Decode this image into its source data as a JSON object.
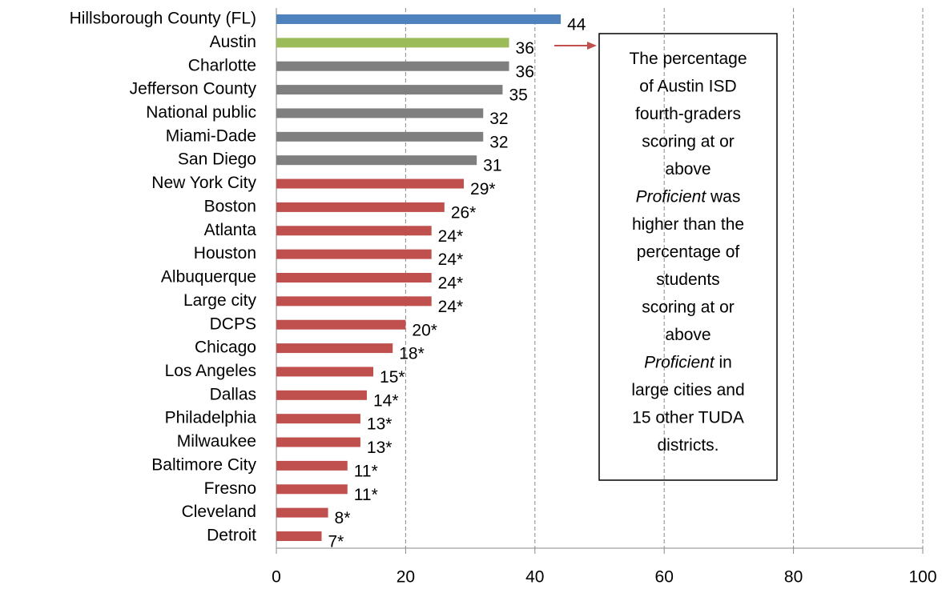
{
  "chart_data": {
    "type": "bar",
    "orientation": "horizontal",
    "categories": [
      "Hillsborough County (FL)",
      "Austin",
      "Charlotte",
      "Jefferson County",
      "National public",
      "Miami-Dade",
      "San Diego",
      "New York City",
      "Boston",
      "Atlanta",
      "Houston",
      "Albuquerque",
      "Large city",
      "DCPS",
      "Chicago",
      "Los Angeles",
      "Dallas",
      "Philadelphia",
      "Milwaukee",
      "Baltimore City",
      "Fresno",
      "Cleveland",
      "Detroit"
    ],
    "values": [
      44,
      36,
      36,
      35,
      32,
      32,
      31,
      29,
      26,
      24,
      24,
      24,
      24,
      20,
      18,
      15,
      14,
      13,
      13,
      11,
      11,
      8,
      7
    ],
    "value_labels": [
      "44",
      "36",
      "36",
      "35",
      "32",
      "32",
      "31",
      "29*",
      "26*",
      "24*",
      "24*",
      "24*",
      "24*",
      "20*",
      "18*",
      "15*",
      "14*",
      "13*",
      "13*",
      "11*",
      "11*",
      "8*",
      "7*"
    ],
    "colors": [
      "#4f81bd",
      "#9bbb59",
      "#7f7f7f",
      "#7f7f7f",
      "#7f7f7f",
      "#7f7f7f",
      "#7f7f7f",
      "#c0504d",
      "#c0504d",
      "#c0504d",
      "#c0504d",
      "#c0504d",
      "#c0504d",
      "#c0504d",
      "#c0504d",
      "#c0504d",
      "#c0504d",
      "#c0504d",
      "#c0504d",
      "#c0504d",
      "#c0504d",
      "#c0504d",
      "#c0504d"
    ],
    "xlim": [
      0,
      100
    ],
    "xticks": [
      0,
      20,
      40,
      60,
      80,
      100
    ],
    "grid": true,
    "annotation": {
      "lines": [
        [
          {
            "text": "The percentage"
          }
        ],
        [
          {
            "text": "of Austin ISD"
          }
        ],
        [
          {
            "text": "fourth-graders"
          }
        ],
        [
          {
            "text": "scoring at or"
          }
        ],
        [
          {
            "text": "above"
          }
        ],
        [
          {
            "text": "Proficient",
            "style": "italic"
          },
          {
            "text": " was"
          }
        ],
        [
          {
            "text": "higher than the"
          }
        ],
        [
          {
            "text": "percentage of"
          }
        ],
        [
          {
            "text": "students"
          }
        ],
        [
          {
            "text": "scoring at or"
          }
        ],
        [
          {
            "text": "above"
          }
        ],
        [
          {
            "text": "Proficient",
            "style": "italic"
          },
          {
            "text": " in"
          }
        ],
        [
          {
            "text": "large cities and"
          }
        ],
        [
          {
            "text": "15 other TUDA"
          }
        ],
        [
          {
            "text": "districts."
          }
        ]
      ]
    }
  }
}
